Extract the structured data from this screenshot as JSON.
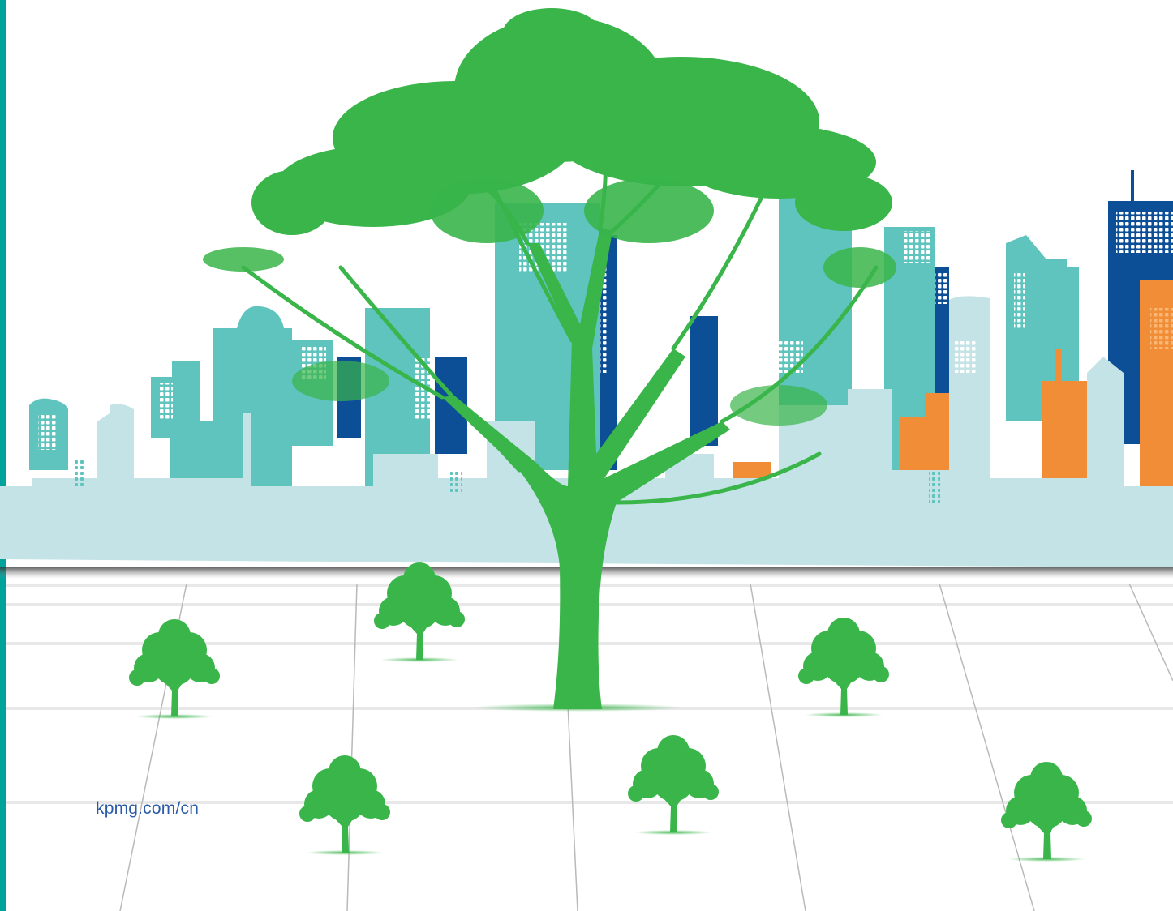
{
  "footer": {
    "url": "kpmg.com/cn"
  }
}
